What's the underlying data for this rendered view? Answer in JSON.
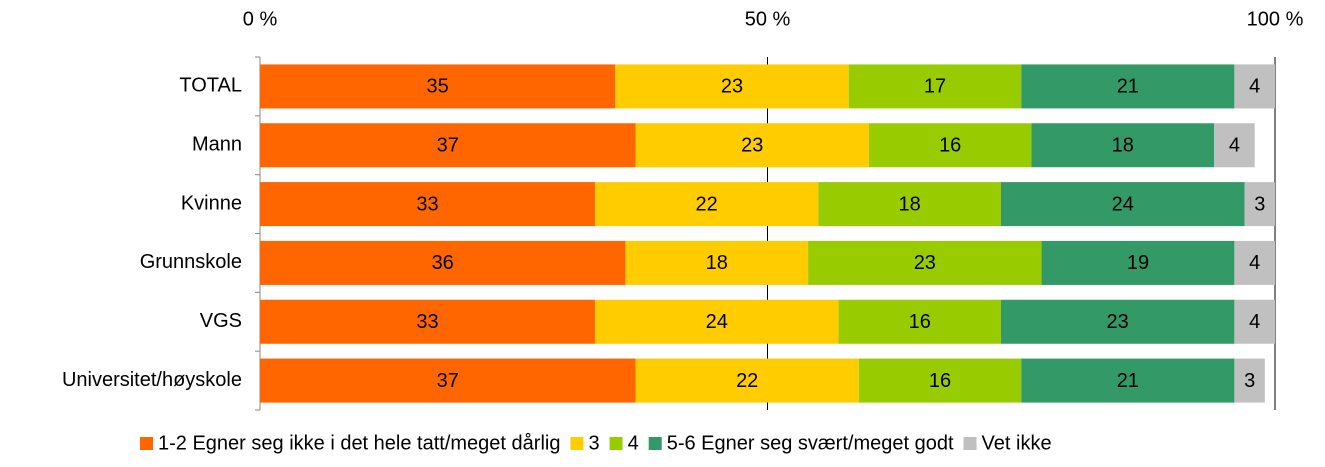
{
  "chart_data": {
    "type": "stacked_barh",
    "categories": [
      "TOTAL",
      "Mann",
      "Kvinne",
      "Grunnskole",
      "VGS",
      "Universitet/høyskole"
    ],
    "series": [
      {
        "name": "1-2 Egner seg ikke i det hele tatt/meget dårlig",
        "color": "#FF6600",
        "values": [
          35,
          37,
          33,
          36,
          33,
          37
        ]
      },
      {
        "name": "3",
        "color": "#FFCC00",
        "values": [
          23,
          23,
          22,
          18,
          24,
          22
        ]
      },
      {
        "name": "4",
        "color": "#99CC00",
        "values": [
          17,
          16,
          18,
          23,
          16,
          16
        ]
      },
      {
        "name": "5-6 Egner seg svært/meget godt",
        "color": "#339966",
        "values": [
          21,
          18,
          24,
          19,
          23,
          21
        ]
      },
      {
        "name": "Vet ikke",
        "color": "#C0C0C0",
        "values": [
          4,
          4,
          3,
          4,
          4,
          3
        ]
      }
    ],
    "xlim": [
      0,
      100
    ],
    "xticks": [
      {
        "value": 0,
        "label": "0 %"
      },
      {
        "value": 50,
        "label": "50 %"
      },
      {
        "value": 100,
        "label": "100 %"
      }
    ],
    "grid": true,
    "legend": "bottom"
  }
}
